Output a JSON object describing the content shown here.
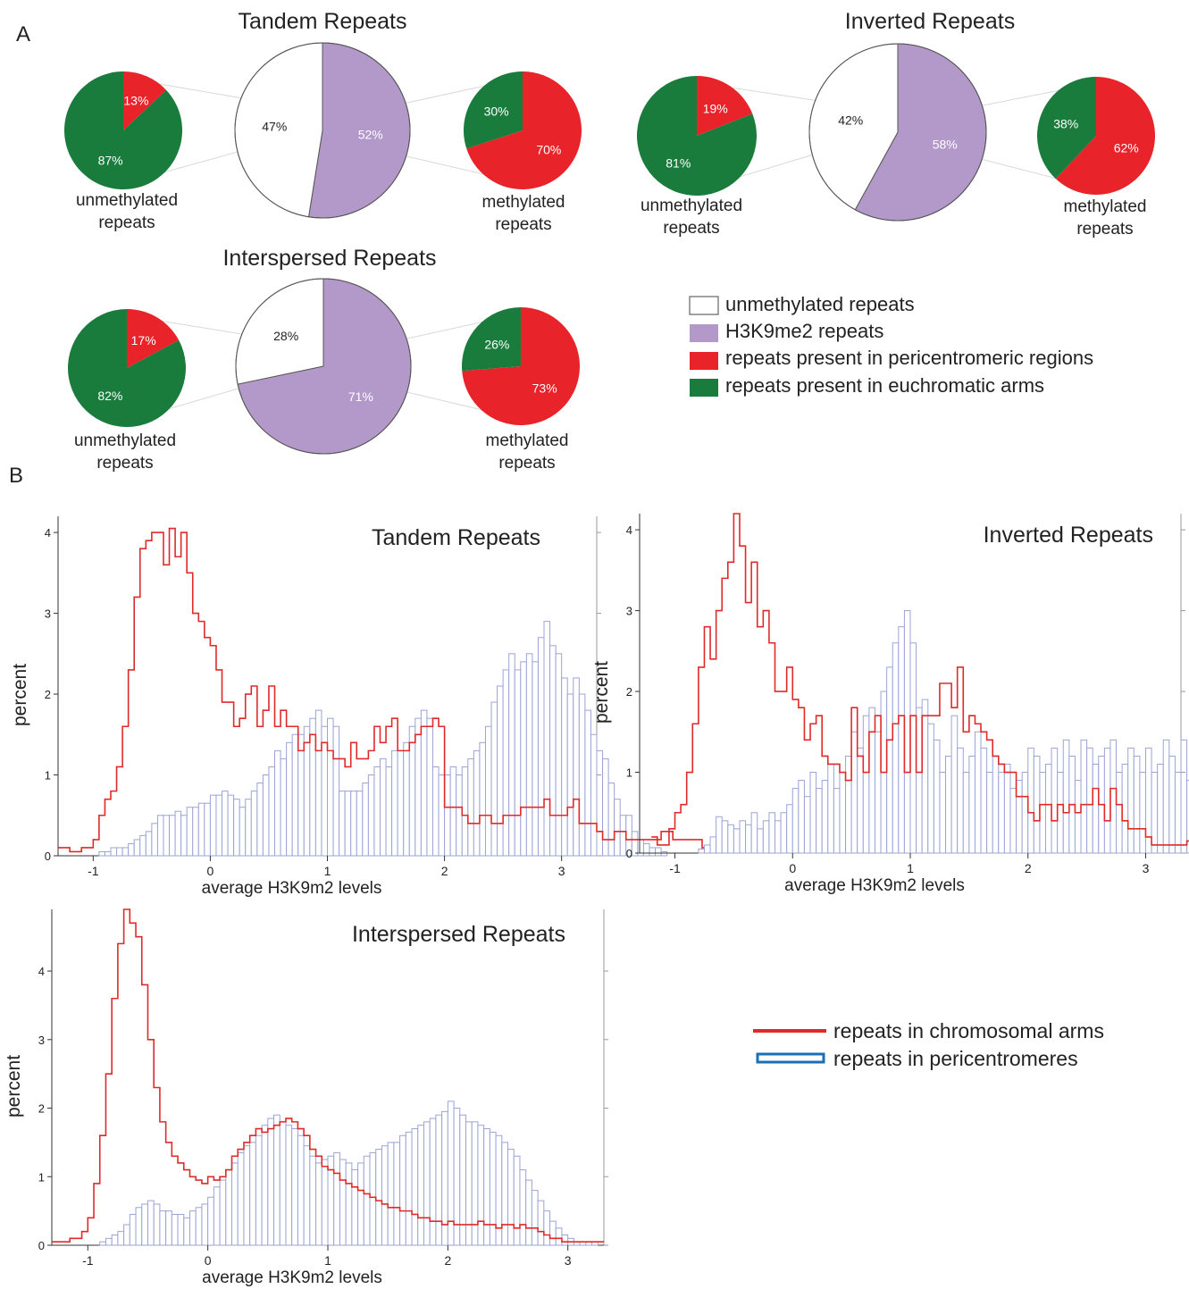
{
  "panel_a_label": "A",
  "panel_b_label": "B",
  "colors": {
    "unmethylated": "#ffffff",
    "h3k9me2": "#b399c9",
    "pericentromeric": "#e8232a",
    "euchromatic": "#1a7c3c",
    "arms_line": "#e02a2a",
    "pericentromere_bars": "#9aa4d6",
    "legend_outline_blue": "#1a6fb5"
  },
  "pie_sub_labels": {
    "unmethylated": "unmethylated\nrepeats",
    "methylated": "methylated\nrepeats"
  },
  "pie_legend": [
    {
      "label": "unmethylated repeats",
      "color": "#ffffff"
    },
    {
      "label": "H3K9me2 repeats",
      "color": "#b399c9"
    },
    {
      "label": "repeats present in pericentromeric regions",
      "color": "#e8232a"
    },
    {
      "label": "repeats present in euchromatic arms",
      "color": "#1a7c3c"
    }
  ],
  "hist_legend": [
    {
      "label": "repeats in chromosomal arms",
      "style": "line",
      "color": "#e02a2a"
    },
    {
      "label": "repeats in pericentromeres",
      "style": "box",
      "color": "#1a6fb5"
    }
  ],
  "chart_data": [
    {
      "type": "pie",
      "title": "Tandem Repeats",
      "main": {
        "labels": [
          "unmethylated repeats",
          "H3K9me2 repeats"
        ],
        "values": [
          47,
          52
        ],
        "display": [
          "47%",
          "52%"
        ]
      },
      "unmethylated_breakdown": {
        "labels": [
          "repeats present in pericentromeric regions",
          "repeats present in euchromatic arms"
        ],
        "values": [
          13,
          87
        ],
        "display": [
          "13%",
          "87%"
        ]
      },
      "methylated_breakdown": {
        "labels": [
          "repeats present in pericentromeric regions",
          "repeats present in euchromatic arms"
        ],
        "values": [
          70,
          30
        ],
        "display": [
          "70%",
          "30%"
        ]
      }
    },
    {
      "type": "pie",
      "title": "Inverted Repeats",
      "main": {
        "labels": [
          "unmethylated repeats",
          "H3K9me2 repeats"
        ],
        "values": [
          42,
          58
        ],
        "display": [
          "42%",
          "58%"
        ]
      },
      "unmethylated_breakdown": {
        "labels": [
          "repeats present in pericentromeric regions",
          "repeats present in euchromatic arms"
        ],
        "values": [
          19,
          81
        ],
        "display": [
          "19%",
          "81%"
        ]
      },
      "methylated_breakdown": {
        "labels": [
          "repeats present in pericentromeric regions",
          "repeats present in euchromatic arms"
        ],
        "values": [
          62,
          38
        ],
        "display": [
          "62%",
          "38%"
        ]
      }
    },
    {
      "type": "pie",
      "title": "Interspersed Repeats",
      "main": {
        "labels": [
          "unmethylated repeats",
          "H3K9me2 repeats"
        ],
        "values": [
          28,
          71
        ],
        "display": [
          "28%",
          "71%"
        ]
      },
      "unmethylated_breakdown": {
        "labels": [
          "repeats present in pericentromeric regions",
          "repeats present in euchromatic arms"
        ],
        "values": [
          17,
          82
        ],
        "display": [
          "17%",
          "82%"
        ]
      },
      "methylated_breakdown": {
        "labels": [
          "repeats present in pericentromeric regions",
          "repeats present in euchromatic arms"
        ],
        "values": [
          73,
          26
        ],
        "display": [
          "73%",
          "26%"
        ]
      }
    },
    {
      "type": "histogram",
      "title": "Tandem Repeats",
      "xlabel": "average H3K9m2 levels",
      "ylabel": "percent",
      "xlim": [
        -1.3,
        3.3
      ],
      "ylim": [
        0,
        4.2
      ],
      "xticks": [
        -1,
        0,
        1,
        2,
        3
      ],
      "yticks": [
        0,
        1,
        2,
        3,
        4
      ],
      "bin_width": 0.05,
      "series": [
        {
          "name": "repeats in chromosomal arms",
          "style": "step",
          "x_start": -1.3,
          "values": [
            0.1,
            0.1,
            0.05,
            0.05,
            0.1,
            0.1,
            0.2,
            0.5,
            0.7,
            0.8,
            1.1,
            1.6,
            2.3,
            3.2,
            3.8,
            3.9,
            4.0,
            4.0,
            3.6,
            4.05,
            3.7,
            4.0,
            3.5,
            3.0,
            2.9,
            2.7,
            2.6,
            2.3,
            1.9,
            1.9,
            1.6,
            1.7,
            2.0,
            2.1,
            1.6,
            1.8,
            2.1,
            1.6,
            1.8,
            1.6,
            1.6,
            1.3,
            1.4,
            1.5,
            1.3,
            1.4,
            1.3,
            1.2,
            1.2,
            1.1,
            1.4,
            1.2,
            1.2,
            1.3,
            1.6,
            1.4,
            1.6,
            1.7,
            1.3,
            1.3,
            1.4,
            1.5,
            1.6,
            1.6,
            1.7,
            1.6,
            0.6,
            0.6,
            0.6,
            0.5,
            0.4,
            0.4,
            0.5,
            0.5,
            0.4,
            0.4,
            0.5,
            0.5,
            0.5,
            0.6,
            0.6,
            0.6,
            0.6,
            0.7,
            0.5,
            0.5,
            0.5,
            0.6,
            0.7,
            0.4,
            0.4,
            0.4,
            0.3,
            0.2,
            0.2,
            0.3,
            0.3,
            0.2,
            0.2,
            0.2,
            0.2,
            0.2,
            0.2,
            0.3,
            0.3,
            0.2,
            0.2,
            0.2,
            0.2,
            0.2,
            0.1,
            0.1
          ]
        },
        {
          "name": "repeats in pericentromeres",
          "style": "bars",
          "x_start": -1.3,
          "values": [
            0,
            0,
            0,
            0,
            0,
            0,
            0,
            0.05,
            0.05,
            0.1,
            0.1,
            0.1,
            0.15,
            0.2,
            0.25,
            0.3,
            0.4,
            0.5,
            0.5,
            0.5,
            0.55,
            0.5,
            0.6,
            0.6,
            0.65,
            0.65,
            0.75,
            0.75,
            0.8,
            0.75,
            0.7,
            0.6,
            0.7,
            0.8,
            0.9,
            1.0,
            1.1,
            1.3,
            1.2,
            1.4,
            1.5,
            1.5,
            1.6,
            1.7,
            1.8,
            1.6,
            1.7,
            1.6,
            0.8,
            0.8,
            0.8,
            0.8,
            0.9,
            1.0,
            1.1,
            1.2,
            1.1,
            1.3,
            1.3,
            1.4,
            1.6,
            1.7,
            1.8,
            1.7,
            1.1,
            1.0,
            1.0,
            1.1,
            1.0,
            1.1,
            1.2,
            1.3,
            1.4,
            1.6,
            1.9,
            2.1,
            2.3,
            2.5,
            2.3,
            2.4,
            2.5,
            2.4,
            2.7,
            2.9,
            2.6,
            2.5,
            2.2,
            2.0,
            2.2,
            2.0,
            1.8,
            1.5,
            1.3,
            1.2,
            0.9,
            0.7,
            0.5,
            0.5,
            0.3,
            0.2,
            0.15,
            0.1,
            0.1,
            0.05,
            0,
            0,
            0,
            0,
            0,
            0,
            0,
            0
          ]
        }
      ]
    },
    {
      "type": "histogram",
      "title": "Inverted Repeats",
      "xlabel": "average H3K9m2 levels",
      "ylabel": "percent",
      "xlim": [
        -1.3,
        3.3
      ],
      "ylim": [
        0,
        4.2
      ],
      "xticks": [
        -1,
        0,
        1,
        2,
        3
      ],
      "yticks": [
        0,
        1,
        2,
        3,
        4
      ],
      "bin_width": 0.05,
      "series": [
        {
          "name": "repeats in chromosomal arms",
          "style": "step",
          "x_start": -1.2,
          "values": [
            0.2,
            0.1,
            0.1,
            0.3,
            0.5,
            0.6,
            1.0,
            1.6,
            2.3,
            2.8,
            2.4,
            3.0,
            3.4,
            3.6,
            4.2,
            3.8,
            3.1,
            3.6,
            2.8,
            3.0,
            2.6,
            2.0,
            2.0,
            2.3,
            1.9,
            1.8,
            1.4,
            1.6,
            1.7,
            1.2,
            1.1,
            1.1,
            1.0,
            0.9,
            1.8,
            1.2,
            1.0,
            1.5,
            1.7,
            1.0,
            1.4,
            1.6,
            1.7,
            1.0,
            1.7,
            1.0,
            1.7,
            1.7,
            1.7,
            2.1,
            2.1,
            1.8,
            2.3,
            1.5,
            1.7,
            1.6,
            1.5,
            1.4,
            1.2,
            1.1,
            1.0,
            1.0,
            0.7,
            0.7,
            0.5,
            0.4,
            0.6,
            0.6,
            0.4,
            0.6,
            0.5,
            0.6,
            0.5,
            0.6,
            0.6,
            0.8,
            0.6,
            0.4,
            0.8,
            0.6,
            0.4,
            0.3,
            0.3,
            0.3,
            0.2,
            0.1,
            0.1,
            0.1,
            0.1,
            0.1,
            0.1,
            0.15,
            0.1,
            0.15,
            0.05,
            0.1,
            0.05,
            0.1,
            0.05,
            0.1,
            0.05,
            0.1,
            0.05,
            0.05,
            0.15
          ]
        },
        {
          "name": "repeats in pericentromeres",
          "style": "bars",
          "x_start": -1.3,
          "values": [
            0,
            0,
            0,
            0,
            0,
            0,
            0,
            0,
            0,
            0,
            0.05,
            0.1,
            0.2,
            0.45,
            0.4,
            0.35,
            0.3,
            0.4,
            0.35,
            0.5,
            0.3,
            0.4,
            0.5,
            0.4,
            0.5,
            0.6,
            0.8,
            0.9,
            0.7,
            1.0,
            0.8,
            0.9,
            1.1,
            0.8,
            1.0,
            1.2,
            1.5,
            1.3,
            1.7,
            1.8,
            1.5,
            2.0,
            2.3,
            2.6,
            2.8,
            3.0,
            2.6,
            1.8,
            1.9,
            1.6,
            1.4,
            1.0,
            1.2,
            1.7,
            1.3,
            1.0,
            1.2,
            1.5,
            1.3,
            1.0,
            1.2,
            1.0,
            1.1,
            0.8,
            0.9,
            1.0,
            1.3,
            1.2,
            1.0,
            1.1,
            1.3,
            1.0,
            1.4,
            1.2,
            0.9,
            1.4,
            1.3,
            1.1,
            1.2,
            1.3,
            1.4,
            1.0,
            1.1,
            1.3,
            1.2,
            1.0,
            1.3,
            1.0,
            1.1,
            1.4,
            1.2,
            1.0,
            1.4,
            0.9,
            1.5,
            1.1,
            0.8,
            0.9,
            0.6,
            0.7,
            0.3,
            0.2,
            0.1,
            0.05,
            0.05
          ]
        }
      ]
    },
    {
      "type": "histogram",
      "title": "Interspersed Repeats",
      "xlabel": "average H3K9m2 levels",
      "ylabel": "percent",
      "xlim": [
        -1.3,
        3.3
      ],
      "ylim": [
        0,
        4.9
      ],
      "xticks": [
        -1,
        0,
        1,
        2,
        3
      ],
      "yticks": [
        0,
        1,
        2,
        3,
        4
      ],
      "bin_width": 0.05,
      "series": [
        {
          "name": "repeats in chromosomal arms",
          "style": "step",
          "x_start": -1.3,
          "values": [
            0.05,
            0.05,
            0.05,
            0.1,
            0.1,
            0.2,
            0.4,
            0.9,
            1.6,
            2.5,
            3.6,
            4.4,
            4.9,
            4.7,
            4.5,
            3.8,
            3.0,
            2.3,
            1.8,
            1.5,
            1.3,
            1.2,
            1.1,
            1.0,
            0.95,
            0.9,
            1.0,
            0.95,
            1.0,
            1.1,
            1.3,
            1.4,
            1.5,
            1.6,
            1.7,
            1.65,
            1.7,
            1.75,
            1.8,
            1.85,
            1.8,
            1.7,
            1.6,
            1.4,
            1.3,
            1.15,
            1.1,
            1.05,
            0.95,
            0.9,
            0.85,
            0.8,
            0.75,
            0.7,
            0.65,
            0.6,
            0.55,
            0.55,
            0.5,
            0.5,
            0.45,
            0.4,
            0.4,
            0.35,
            0.35,
            0.3,
            0.35,
            0.3,
            0.3,
            0.3,
            0.3,
            0.35,
            0.3,
            0.3,
            0.25,
            0.3,
            0.3,
            0.25,
            0.3,
            0.25,
            0.25,
            0.2,
            0.15,
            0.1,
            0.1,
            0.05,
            0.05,
            0.05,
            0.05,
            0.05,
            0.05,
            0.05
          ]
        },
        {
          "name": "repeats in pericentromeres",
          "style": "bars",
          "x_start": -1.3,
          "values": [
            0,
            0,
            0,
            0,
            0,
            0,
            0,
            0,
            0.05,
            0.1,
            0.15,
            0.2,
            0.3,
            0.45,
            0.55,
            0.6,
            0.65,
            0.6,
            0.5,
            0.5,
            0.45,
            0.45,
            0.4,
            0.5,
            0.55,
            0.6,
            0.7,
            0.85,
            0.95,
            1.1,
            1.2,
            1.35,
            1.45,
            1.5,
            1.6,
            1.75,
            1.85,
            1.9,
            1.8,
            1.75,
            1.7,
            1.6,
            1.45,
            1.3,
            1.2,
            1.25,
            1.3,
            1.35,
            1.25,
            1.2,
            1.1,
            1.2,
            1.3,
            1.35,
            1.4,
            1.45,
            1.5,
            1.5,
            1.6,
            1.65,
            1.7,
            1.75,
            1.8,
            1.85,
            1.9,
            1.95,
            2.1,
            2.0,
            1.9,
            1.8,
            1.8,
            1.75,
            1.7,
            1.65,
            1.6,
            1.5,
            1.4,
            1.3,
            1.1,
            0.95,
            0.8,
            0.65,
            0.5,
            0.35,
            0.25,
            0.15,
            0.1,
            0.05,
            0.05,
            0.05,
            0.05
          ]
        }
      ]
    }
  ]
}
